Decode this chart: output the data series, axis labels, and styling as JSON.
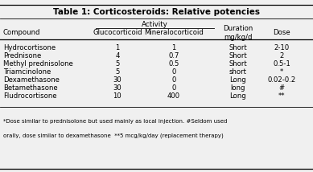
{
  "title": "Table 1: Corticosteroids: Relative potencies",
  "activity_header": "Activity",
  "col_headers": [
    "Compound",
    "Glucocorticoid",
    "Mineralocorticoid",
    "Duration\nmg/kg/d",
    "Dose"
  ],
  "rows": [
    [
      "Hydrocortisone",
      "1",
      "1",
      "Short",
      "2-10"
    ],
    [
      "Prednisone",
      "4",
      "0.7",
      "Short",
      "2"
    ],
    [
      "Methyl prednisolone",
      "5",
      "0.5",
      "Short",
      "0.5-1"
    ],
    [
      "Triamcinolone",
      "5",
      "0",
      "short",
      "*"
    ],
    [
      "Dexamethasone",
      "30",
      "0",
      "Long",
      "0.02-0.2"
    ],
    [
      "Betamethasone",
      "30",
      "0",
      "long",
      "#"
    ],
    [
      "Fludrocortisone",
      "10",
      "400",
      "Long",
      "**"
    ]
  ],
  "footnote_line1": "*Dose similar to prednisolone but used mainly as local injection. #Seldom used",
  "footnote_line2": "orally, dose similar to dexamethasone  **5 mcg/kg/day (replacement therapy)",
  "bg_color": "#f0f0f0"
}
